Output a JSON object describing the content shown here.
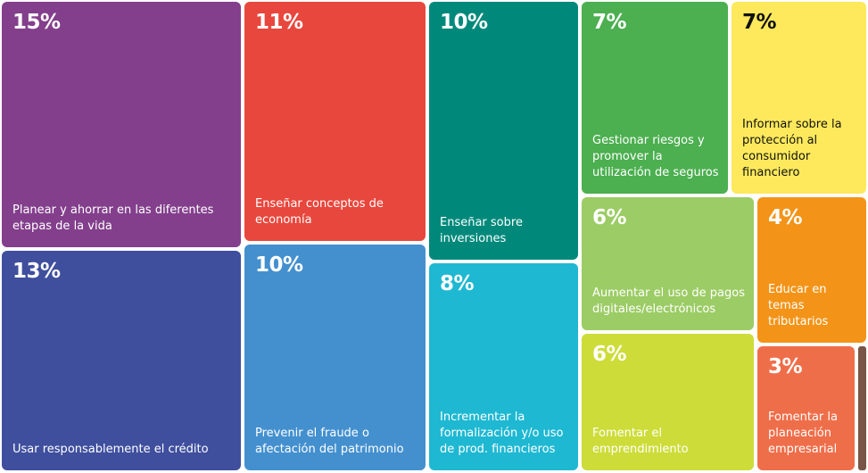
{
  "chart_data": {
    "type": "treemap",
    "unit": "%",
    "items": [
      {
        "label": "Planear y ahorrar en las diferentes etapas de la vida",
        "value": 15,
        "pct_text": "15%",
        "color": "#833f8c"
      },
      {
        "label": "Usar responsablemente el crédito",
        "value": 13,
        "pct_text": "13%",
        "color": "#3f4f9e"
      },
      {
        "label": "Enseñar conceptos de economía",
        "value": 11,
        "pct_text": "11%",
        "color": "#e8473d"
      },
      {
        "label": "Prevenir el fraude o afectación del patrimonio",
        "value": 10,
        "pct_text": "10%",
        "color": "#4490cf"
      },
      {
        "label": "Enseñar sobre inversiones",
        "value": 10,
        "pct_text": "10%",
        "color": "#00897b"
      },
      {
        "label": "Incrementar la formalización y/o uso de prod. financieros",
        "value": 8,
        "pct_text": "8%",
        "color": "#1fb8d2"
      },
      {
        "label": "Gestionar riesgos y promover la utilización de seguros",
        "value": 7,
        "pct_text": "7%",
        "color": "#4caf50"
      },
      {
        "label": "Informar sobre la protección al consumidor financiero",
        "value": 7,
        "pct_text": "7%",
        "color": "#fde95b"
      },
      {
        "label": "Aumentar el uso de pagos digitales/electrónicos",
        "value": 6,
        "pct_text": "6%",
        "color": "#9ccc65"
      },
      {
        "label": "Fomentar el emprendimiento",
        "value": 6,
        "pct_text": "6%",
        "color": "#cddc39"
      },
      {
        "label": "Educar en temas tributarios",
        "value": 4,
        "pct_text": "4%",
        "color": "#f39419"
      },
      {
        "label": "Fomentar la planeación empresarial",
        "value": 3,
        "pct_text": "3%",
        "color": "#ef6e4a"
      },
      {
        "value": 1,
        "color": "#795548"
      }
    ]
  }
}
